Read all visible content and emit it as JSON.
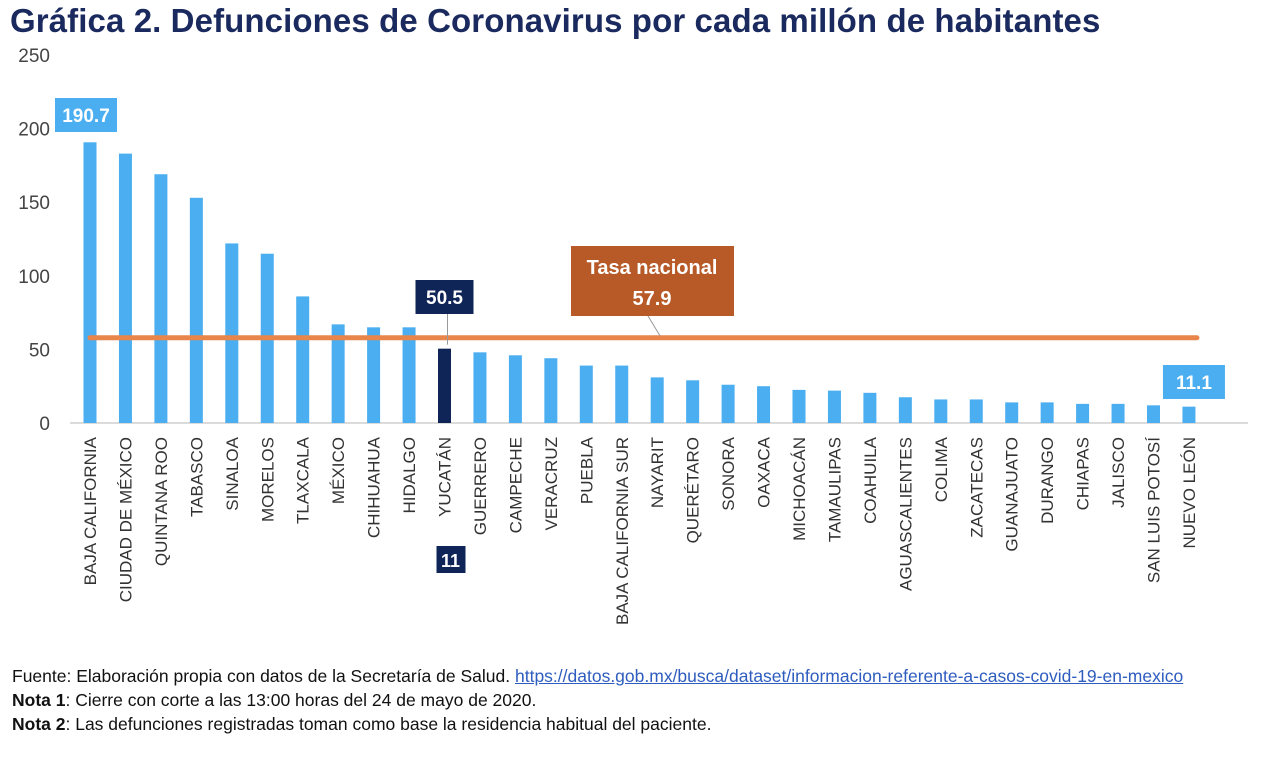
{
  "title": "Gráfica 2. Defunciones de Coronavirus por cada millón de habitantes",
  "footer": {
    "source_prefix": "Fuente: Elaboración propia con datos de la Secretaría de Salud.",
    "source_url": "https://datos.gob.mx/busca/dataset/informacion-referente-a-casos-covid-19-en-mexico",
    "note1_label": "Nota 1",
    "note1_text": ": Cierre con corte a las 13:00 horas del 24 de mayo de 2020.",
    "note2_label": "Nota 2",
    "note2_text": ": Las defunciones registradas toman como base la residencia habitual del paciente."
  },
  "chart_data": {
    "type": "bar",
    "title": "Gráfica 2. Defunciones de Coronavirus por cada millón de habitantes",
    "xlabel": "",
    "ylabel": "",
    "ylim": [
      0,
      250
    ],
    "yticks": [
      "0",
      "50",
      "100",
      "150",
      "200",
      "250"
    ],
    "grid": false,
    "categories": [
      "BAJA CALIFORNIA",
      "CIUDAD DE MÉXICO",
      "QUINTANA ROO",
      "TABASCO",
      "SINALOA",
      "MORELOS",
      "TLAXCALA",
      "MÉXICO",
      "CHIHUAHUA",
      "HIDALGO",
      "YUCATÁN",
      "GUERRERO",
      "CAMPECHE",
      "VERACRUZ",
      "PUEBLA",
      "BAJA CALIFORNIA SUR",
      "NAYARIT",
      "QUERÉTARO",
      "SONORA",
      "OAXACA",
      "MICHOACÁN",
      "TAMAULIPAS",
      "COAHUILA",
      "AGUASCALIENTES",
      "COLIMA",
      "ZACATECAS",
      "GUANAJUATO",
      "DURANGO",
      "CHIAPAS",
      "JALISCO",
      "SAN LUIS POTOSÍ",
      "NUEVO LEÓN"
    ],
    "values": [
      190.7,
      183,
      169,
      153,
      122,
      115,
      86,
      67,
      65,
      65,
      50.5,
      48,
      46,
      44,
      39,
      39,
      31,
      29,
      26,
      25,
      22.5,
      22,
      20.5,
      17.5,
      16,
      16,
      14,
      14,
      13,
      13,
      12,
      11.1
    ],
    "colors": {
      "bar": "#4aaef0",
      "highlight": "#0f2457",
      "national_line": "#e8854a",
      "national_box": "#b85a28",
      "label_box": "#4aaef0"
    },
    "highlight_category": "YUCATÁN",
    "highlight_rank": "11",
    "reference_line": {
      "label": "Tasa nacional",
      "value": 57.9,
      "value_label": "57.9"
    },
    "data_labels": [
      {
        "category": "BAJA CALIFORNIA",
        "text": "190.7"
      },
      {
        "category": "YUCATÁN",
        "text": "50.5"
      },
      {
        "category": "NUEVO LEÓN",
        "text": "11.1"
      }
    ]
  }
}
